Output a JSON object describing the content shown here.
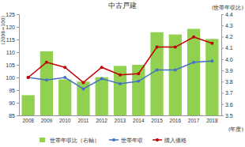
{
  "chart_data": {
    "type": "bar",
    "title": "中古戸建",
    "y_label": "(2008=100)",
    "y2_label": "(世帯年収比)",
    "x_label": "(年度)",
    "categories": [
      "2008",
      "2009",
      "2010",
      "2011",
      "2012",
      "2013",
      "2014",
      "2015",
      "2016",
      "2017",
      "2018"
    ],
    "series": [
      {
        "name": "世帯年収比（右軸）",
        "type": "bar",
        "axis": "y2",
        "color": "#92d050",
        "values": [
          3.68,
          4.07,
          3.82,
          3.8,
          3.84,
          3.94,
          3.95,
          4.24,
          4.22,
          4.27,
          4.18
        ]
      },
      {
        "name": "世帯年収",
        "type": "line",
        "color": "#4472c4",
        "marker": "circle",
        "values": [
          100,
          99,
          100,
          95.5,
          99.5,
          97.5,
          98.5,
          103,
          103,
          106,
          106.5
        ]
      },
      {
        "name": "購入価格",
        "type": "line",
        "color": "#c00000",
        "marker": "circle",
        "values": [
          100,
          106,
          104,
          98,
          104,
          101,
          101.5,
          112,
          112,
          116,
          113.5
        ]
      }
    ],
    "ylim": [
      85,
      125
    ],
    "yticks": [
      85,
      90,
      95,
      100,
      105,
      110,
      115,
      120,
      125
    ],
    "y2lim": [
      3.5,
      4.4
    ],
    "y2ticks": [
      3.5,
      3.6,
      3.7,
      3.8,
      3.9,
      {
        "value": 4,
        "label": "4.0"
      },
      4.1,
      4.2,
      4.3,
      4.4
    ],
    "grid": false,
    "legend": "bottom"
  }
}
